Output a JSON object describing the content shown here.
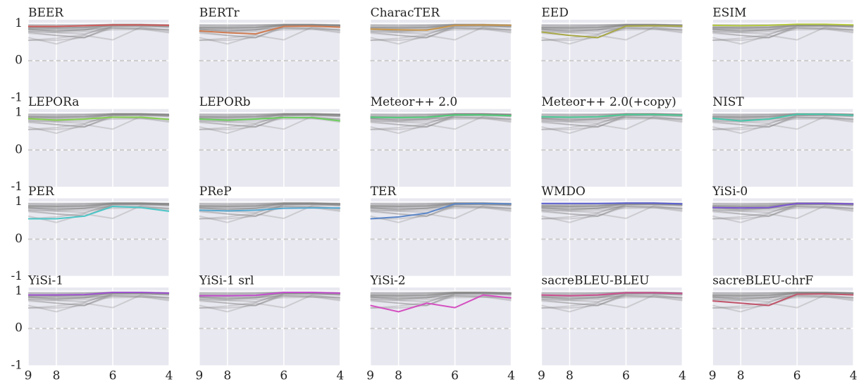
{
  "chart_data": {
    "type": "line",
    "x": [
      9,
      8,
      7,
      6,
      5,
      4
    ],
    "xlim": [
      9,
      4
    ],
    "xticks": [
      9,
      8,
      6,
      4
    ],
    "ylim": [
      -1,
      1.1
    ],
    "yticks": [
      -1,
      0,
      1
    ],
    "hline": 0,
    "grid": true,
    "columns": 5,
    "series": [
      {
        "name": "BEER",
        "color": "#cf5b5b",
        "values": [
          0.92,
          0.92,
          0.94,
          0.96,
          0.96,
          0.95
        ]
      },
      {
        "name": "BERTr",
        "color": "#d07b50",
        "values": [
          0.8,
          0.75,
          0.72,
          0.92,
          0.93,
          0.9
        ]
      },
      {
        "name": "CharacTER",
        "color": "#c9974d",
        "values": [
          0.85,
          0.83,
          0.82,
          0.95,
          0.96,
          0.95
        ]
      },
      {
        "name": "EED",
        "color": "#a8a845",
        "values": [
          0.77,
          0.68,
          0.62,
          0.93,
          0.94,
          0.93
        ]
      },
      {
        "name": "ESIM",
        "color": "#b5c83f",
        "values": [
          0.95,
          0.94,
          0.95,
          0.98,
          0.98,
          0.96
        ]
      },
      {
        "name": "LEPORa",
        "color": "#86d050",
        "values": [
          0.84,
          0.8,
          0.83,
          0.88,
          0.88,
          0.82
        ]
      },
      {
        "name": "LEPORb",
        "color": "#6acd5c",
        "values": [
          0.83,
          0.8,
          0.83,
          0.87,
          0.87,
          0.78
        ]
      },
      {
        "name": "Meteor++ 2.0",
        "color": "#4fcc78",
        "values": [
          0.88,
          0.87,
          0.88,
          0.94,
          0.94,
          0.92
        ]
      },
      {
        "name": "Meteor++ 2.0(+copy)",
        "color": "#4ccb96",
        "values": [
          0.89,
          0.88,
          0.89,
          0.95,
          0.95,
          0.93
        ]
      },
      {
        "name": "NIST",
        "color": "#49c6ab",
        "values": [
          0.85,
          0.78,
          0.83,
          0.96,
          0.96,
          0.93
        ]
      },
      {
        "name": "PER",
        "color": "#4cc7c7",
        "values": [
          0.55,
          0.55,
          0.62,
          0.88,
          0.85,
          0.75
        ]
      },
      {
        "name": "PReP",
        "color": "#55a8cf",
        "values": [
          0.78,
          0.76,
          0.78,
          0.83,
          0.84,
          0.84
        ]
      },
      {
        "name": "TER",
        "color": "#5b86c8",
        "values": [
          0.55,
          0.6,
          0.7,
          0.95,
          0.96,
          0.95
        ]
      },
      {
        "name": "WMDO",
        "color": "#5a5fd0",
        "values": [
          0.96,
          0.96,
          0.96,
          0.97,
          0.97,
          0.95
        ]
      },
      {
        "name": "YiSi-0",
        "color": "#7a55cf",
        "values": [
          0.85,
          0.84,
          0.85,
          0.96,
          0.96,
          0.95
        ]
      },
      {
        "name": "YiSi-1",
        "color": "#9e52cf",
        "values": [
          0.9,
          0.9,
          0.91,
          0.97,
          0.97,
          0.95
        ]
      },
      {
        "name": "YiSi-1 srl",
        "color": "#c44ecf",
        "values": [
          0.88,
          0.88,
          0.89,
          0.97,
          0.97,
          0.95
        ]
      },
      {
        "name": "YiSi-2",
        "color": "#d44fc0",
        "values": [
          0.62,
          0.45,
          0.68,
          0.56,
          0.9,
          0.82
        ]
      },
      {
        "name": "sacreBLEU-BLEU",
        "color": "#cc5090",
        "values": [
          0.9,
          0.88,
          0.9,
          0.96,
          0.96,
          0.94
        ]
      },
      {
        "name": "sacreBLEU-chrF",
        "color": "#c2556b",
        "values": [
          0.74,
          0.68,
          0.62,
          0.92,
          0.93,
          0.9
        ]
      }
    ]
  }
}
